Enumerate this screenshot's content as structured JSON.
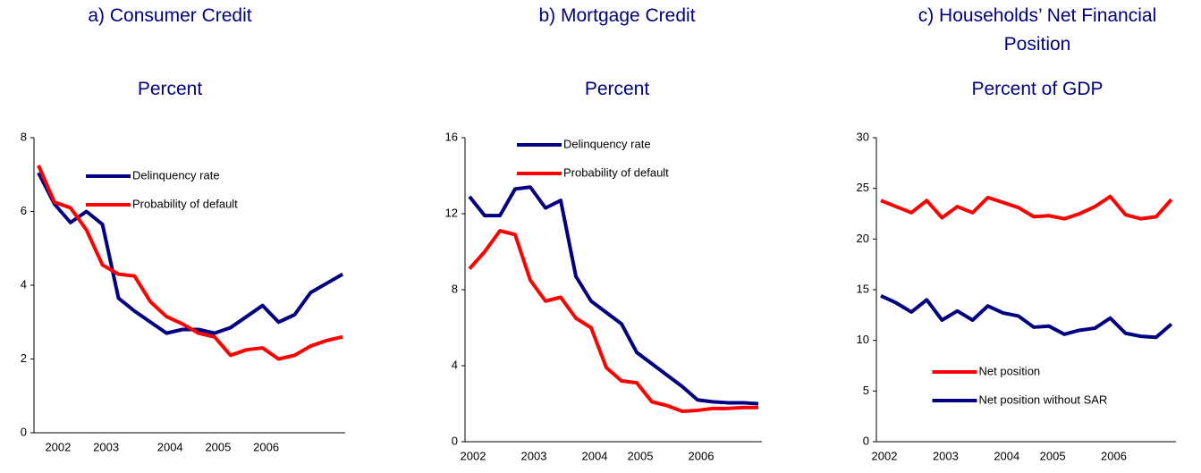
{
  "chart_data": [
    {
      "type": "line",
      "title": "a) Consumer Credit",
      "subtitle": "Percent",
      "categories": [
        null,
        "2002",
        null,
        null,
        "2003",
        null,
        null,
        null,
        "2004",
        null,
        null,
        "2005",
        null,
        null,
        "2006",
        null,
        null,
        null,
        null,
        null
      ],
      "series": [
        {
          "name": "Delinquency rate",
          "color": "#000080",
          "values": [
            7.05,
            6.2,
            5.7,
            6.0,
            5.65,
            3.65,
            3.3,
            3.0,
            2.7,
            2.8,
            2.8,
            2.7,
            2.85,
            3.15,
            3.45,
            3.0,
            3.2,
            3.8,
            4.05,
            4.3
          ]
        },
        {
          "name": "Probability of default",
          "color": "#ff0000",
          "values": [
            7.25,
            6.25,
            6.1,
            5.5,
            4.55,
            4.3,
            4.25,
            3.55,
            3.15,
            2.95,
            2.7,
            2.6,
            2.1,
            2.25,
            2.3,
            2.0,
            2.1,
            2.35,
            2.5,
            2.6
          ]
        }
      ],
      "ylim": [
        0,
        8
      ],
      "yticks": [
        0,
        2,
        4,
        6,
        8
      ],
      "legend": "upper left"
    },
    {
      "type": "line",
      "title": "b) Mortgage Credit",
      "subtitle": "Percent",
      "categories": [
        "2002",
        null,
        null,
        null,
        "2003",
        null,
        null,
        null,
        "2004",
        null,
        null,
        "2005",
        null,
        null,
        null,
        "2006",
        null,
        null,
        null,
        null
      ],
      "series": [
        {
          "name": "Delinquency rate",
          "color": "#000080",
          "values": [
            12.9,
            11.9,
            11.9,
            13.3,
            13.4,
            12.3,
            12.7,
            8.7,
            7.4,
            6.8,
            6.2,
            4.7,
            4.1,
            3.5,
            2.9,
            2.2,
            2.1,
            2.05,
            2.05,
            2.0
          ]
        },
        {
          "name": "Probability  of  default",
          "color": "#ff0000",
          "values": [
            9.1,
            10.0,
            11.1,
            10.9,
            8.5,
            7.4,
            7.6,
            6.5,
            6.0,
            3.9,
            3.2,
            3.1,
            2.1,
            1.9,
            1.6,
            1.65,
            1.75,
            1.75,
            1.8,
            1.8
          ]
        }
      ],
      "ylim": [
        0,
        16
      ],
      "yticks": [
        0,
        4,
        8,
        12,
        16
      ],
      "legend": "upper left"
    },
    {
      "type": "line",
      "title": "c) Households’ Net Financial Position",
      "subtitle": "Percent of GDP",
      "categories": [
        "2002",
        null,
        null,
        null,
        "2003",
        null,
        null,
        null,
        "2004",
        null,
        null,
        "2005",
        null,
        null,
        null,
        "2006",
        null,
        null,
        null,
        null
      ],
      "series": [
        {
          "name": "Net position",
          "color": "#ff0000",
          "values": [
            23.8,
            23.2,
            22.6,
            23.8,
            22.1,
            23.2,
            22.6,
            24.1,
            23.6,
            23.1,
            22.2,
            22.3,
            22.0,
            22.5,
            23.2,
            24.2,
            22.4,
            22.0,
            22.2,
            23.9
          ]
        },
        {
          "name": "Net position without SAR",
          "color": "#000080",
          "values": [
            14.4,
            13.7,
            12.8,
            14.0,
            12.0,
            12.9,
            12.0,
            13.4,
            12.7,
            12.4,
            11.3,
            11.4,
            10.6,
            11.0,
            11.2,
            12.2,
            10.7,
            10.4,
            10.3,
            11.6
          ]
        }
      ],
      "ylim": [
        0,
        30
      ],
      "yticks": [
        0,
        5,
        10,
        15,
        20,
        25,
        30
      ],
      "legend": "lower center"
    }
  ]
}
